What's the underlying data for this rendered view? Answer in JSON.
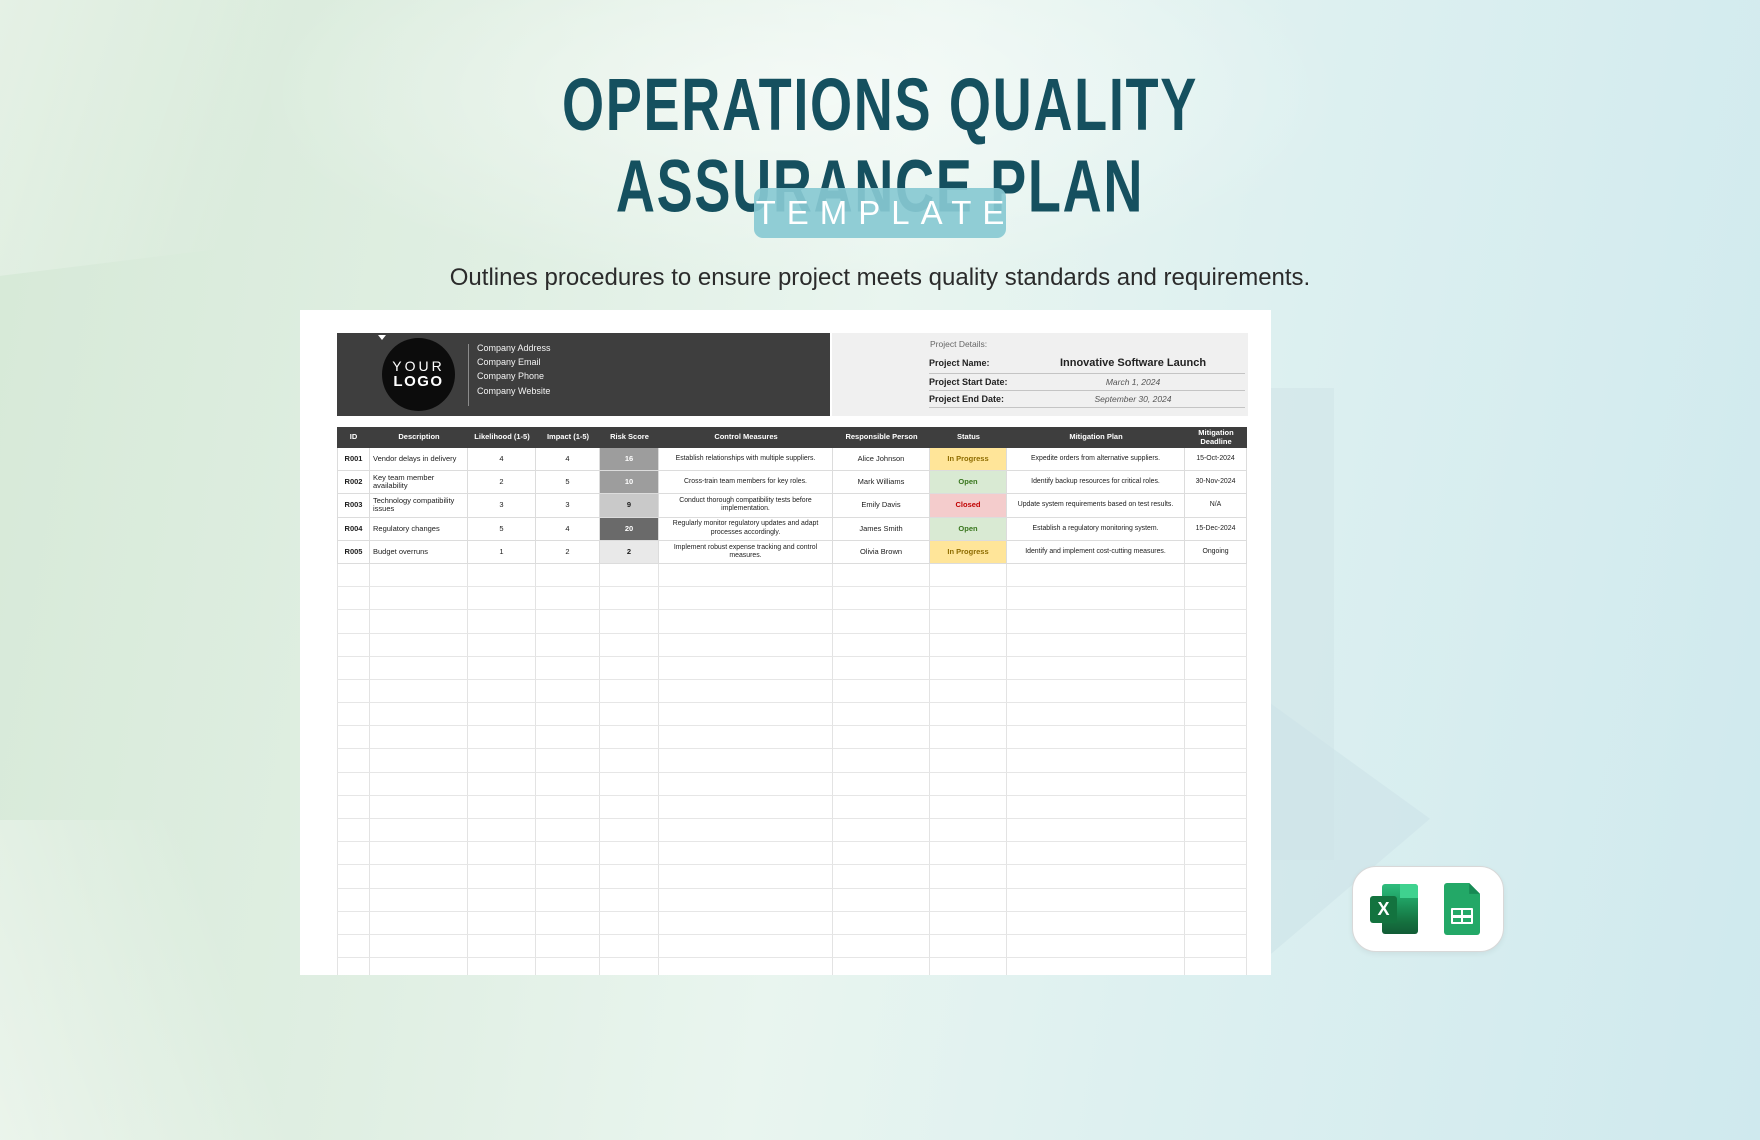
{
  "page": {
    "title_line1": "OPERATIONS QUALITY",
    "title_line2": "ASSURANCE PLAN",
    "badge": "TEMPLATE",
    "subtitle": "Outlines procedures to ensure project meets quality standards and requirements.",
    "title_color": "#15505f",
    "badge_color": "#88c9d2"
  },
  "company": {
    "logo_line1": "YOUR",
    "logo_line2": "LOGO",
    "lines": [
      "Company Address",
      "Company Email",
      "Company Phone",
      "Company Website"
    ]
  },
  "project_details": {
    "heading": "Project Details:",
    "name_label": "Project Name:",
    "name_value": "Innovative Software Launch",
    "start_label": "Project Start Date:",
    "start_value": "March 1, 2024",
    "end_label": "Project End Date:",
    "end_value": "September 30, 2024"
  },
  "table": {
    "headers": [
      "ID",
      "Description",
      "Likelihood (1-5)",
      "Impact (1-5)",
      "Risk Score",
      "Control Measures",
      "Responsible Person",
      "Status",
      "Mitigation Plan",
      "Mitigation Deadline"
    ],
    "rows": [
      {
        "id": "R001",
        "description": "Vendor delays in delivery",
        "likelihood": "4",
        "impact": "4",
        "risk_score": "16",
        "risk_bg": "#9d9d9d",
        "risk_fg": "#ffffff",
        "control": "Establish relationships with multiple suppliers.",
        "person": "Alice Johnson",
        "status": "In Progress",
        "mitigation": "Expedite orders from alternative suppliers.",
        "deadline": "15-Oct-2024"
      },
      {
        "id": "R002",
        "description": "Key team member availability",
        "likelihood": "2",
        "impact": "5",
        "risk_score": "10",
        "risk_bg": "#9d9d9d",
        "risk_fg": "#ffffff",
        "control": "Cross-train team members for key roles.",
        "person": "Mark Williams",
        "status": "Open",
        "mitigation": "Identify backup resources for critical roles.",
        "deadline": "30-Nov-2024"
      },
      {
        "id": "R003",
        "description": "Technology compatibility issues",
        "likelihood": "3",
        "impact": "3",
        "risk_score": "9",
        "risk_bg": "#c9c9c9",
        "risk_fg": "#1c1c1c",
        "control": "Conduct thorough compatibility tests before implementation.",
        "person": "Emily Davis",
        "status": "Closed",
        "mitigation": "Update system requirements based on test results.",
        "deadline": "N/A"
      },
      {
        "id": "R004",
        "description": "Regulatory changes",
        "likelihood": "5",
        "impact": "4",
        "risk_score": "20",
        "risk_bg": "#6a6a6a",
        "risk_fg": "#ffffff",
        "control": "Regularly monitor regulatory updates and adapt processes accordingly.",
        "person": "James Smith",
        "status": "Open",
        "mitigation": "Establish a regulatory monitoring system.",
        "deadline": "15-Dec-2024"
      },
      {
        "id": "R005",
        "description": "Budget overruns",
        "likelihood": "1",
        "impact": "2",
        "risk_score": "2",
        "risk_bg": "#e9e9e9",
        "risk_fg": "#1c1c1c",
        "control": "Implement robust expense tracking and control measures.",
        "person": "Olivia Brown",
        "status": "In Progress",
        "mitigation": "Identify and implement cost-cutting measures.",
        "deadline": "Ongoing"
      }
    ],
    "status_colors": {
      "In Progress": {
        "bg": "#FFE599",
        "fg": "#8E6C00"
      },
      "Open": {
        "bg": "#D9EAD3",
        "fg": "#38761D"
      },
      "Closed": {
        "bg": "#F4CCCC",
        "fg": "#C00000"
      }
    },
    "empty_row_count": 18
  },
  "footer": {
    "icons": [
      "excel-icon",
      "google-sheets-icon"
    ]
  }
}
